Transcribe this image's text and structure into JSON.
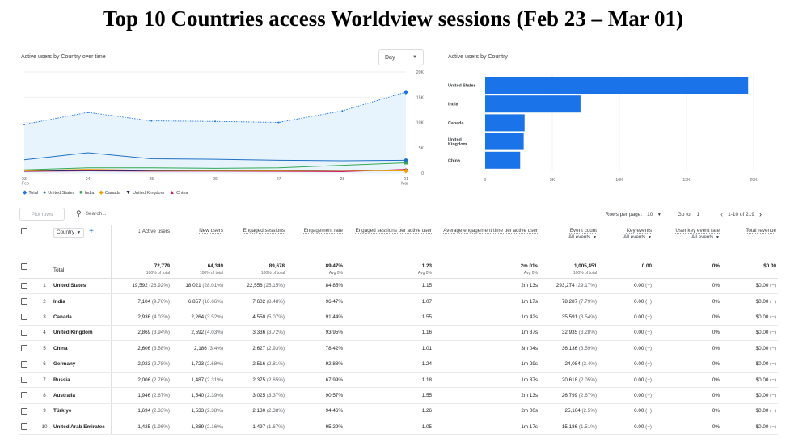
{
  "title": "Top 10 Countries access Worldview sessions (Feb 23 – Mar 01)",
  "line_panel": {
    "label": "Active users by Country over time",
    "granularity": "Day",
    "chevron_icon": "chevron-down-icon"
  },
  "bar_panel": {
    "label": "Active users by Country"
  },
  "colors": {
    "total": "#1a73e8",
    "united_states": "#1f6fc5",
    "india": "#33a853",
    "canada": "#f4a100",
    "united_kingdom": "#202a6e",
    "china": "#d81b60",
    "bar": "#1a73e8",
    "area": "#e8f4fd"
  },
  "chart_data": [
    {
      "type": "line",
      "title": "Active users by Country over time",
      "x": [
        "23\nFeb",
        "24",
        "25",
        "26",
        "27",
        "28",
        "01\nMar"
      ],
      "ylim": [
        0,
        20000
      ],
      "y_ticks": [
        "20K",
        "15K",
        "10K",
        "5K",
        "0"
      ],
      "grid": true,
      "legend_position": "bottom-left",
      "series": [
        {
          "name": "Total",
          "values": [
            9600,
            12000,
            10300,
            10200,
            10000,
            12300,
            16000
          ]
        },
        {
          "name": "United States",
          "values": [
            2600,
            4000,
            2800,
            2700,
            2500,
            2400,
            2500
          ]
        },
        {
          "name": "India",
          "values": [
            600,
            1000,
            1000,
            900,
            1000,
            1500,
            2000
          ]
        },
        {
          "name": "Canada",
          "values": [
            400,
            700,
            500,
            450,
            450,
            500,
            400
          ]
        },
        {
          "name": "United Kingdom",
          "values": [
            350,
            450,
            400,
            400,
            400,
            450,
            450
          ]
        },
        {
          "name": "China",
          "values": [
            300,
            400,
            350,
            350,
            300,
            250,
            700
          ]
        }
      ]
    },
    {
      "type": "bar",
      "orientation": "horizontal",
      "title": "Active users by Country",
      "categories": [
        "United States",
        "India",
        "Canada",
        "United Kingdom",
        "China"
      ],
      "values": [
        19592,
        7104,
        2936,
        2869,
        2606
      ],
      "xlim": [
        0,
        20000
      ],
      "x_ticks": [
        "0",
        "5K",
        "10K",
        "15K",
        "20K"
      ],
      "grid": true
    }
  ],
  "legend": [
    {
      "label": "Total",
      "icon": "diamond-icon",
      "key": "total"
    },
    {
      "label": "United States",
      "icon": "circle-icon",
      "key": "united_states"
    },
    {
      "label": "India",
      "icon": "square-icon",
      "key": "india"
    },
    {
      "label": "Canada",
      "icon": "diamond-icon",
      "key": "canada"
    },
    {
      "label": "United Kingdom",
      "icon": "triangle-down-icon",
      "key": "united_kingdom"
    },
    {
      "label": "China",
      "icon": "triangle-up-icon",
      "key": "china"
    }
  ],
  "toolbar": {
    "plot_rows": "Plot rows",
    "search_placeholder": "Search...",
    "search_icon": "search-icon",
    "rows_per_page_label": "Rows per page:",
    "rows_per_page": "10",
    "goto_label": "Go to:",
    "goto_value": "1",
    "range": "1-10 of 219"
  },
  "table": {
    "country_dimension": "Country",
    "columns": [
      {
        "label": "Active users",
        "sorted": true
      },
      {
        "label": "New users"
      },
      {
        "label": "Engaged sessions"
      },
      {
        "label": "Engagement rate"
      },
      {
        "label": "Engaged sessions per active user"
      },
      {
        "label": "Average engagement time per active user"
      },
      {
        "label": "Event count",
        "sub": "All events"
      },
      {
        "label": "Key events",
        "sub": "All events"
      },
      {
        "label": "User key event rate",
        "sub": "All events"
      },
      {
        "label": "Total revenue"
      }
    ],
    "total": {
      "label": "Total",
      "cells": [
        {
          "v": "72,779",
          "s": "100% of total"
        },
        {
          "v": "64,349",
          "s": "100% of total"
        },
        {
          "v": "89,678",
          "s": "100% of total"
        },
        {
          "v": "89.47%",
          "s": "Avg 0%"
        },
        {
          "v": "1.23",
          "s": "Avg 0%"
        },
        {
          "v": "2m 01s",
          "s": "Avg 0%"
        },
        {
          "v": "1,005,451",
          "s": "100% of total"
        },
        {
          "v": "0.00",
          "s": ""
        },
        {
          "v": "0%",
          "s": ""
        },
        {
          "v": "$0.00",
          "s": ""
        }
      ]
    },
    "rows": [
      {
        "idx": "1",
        "country": "United States",
        "cells": [
          [
            "19,592",
            "(26.92%)"
          ],
          [
            "18,021",
            "(28.01%)"
          ],
          [
            "22,558",
            "(25.15%)"
          ],
          [
            "84.85%",
            ""
          ],
          [
            "1.15",
            ""
          ],
          [
            "2m 13s",
            ""
          ],
          [
            "293,274",
            "(29.17%)"
          ],
          [
            "0.00",
            "(−)"
          ],
          [
            "0%",
            ""
          ],
          [
            "$0.00",
            "(−)"
          ]
        ]
      },
      {
        "idx": "2",
        "country": "India",
        "cells": [
          [
            "7,104",
            "(9.76%)"
          ],
          [
            "6,857",
            "(10.66%)"
          ],
          [
            "7,602",
            "(8.48%)"
          ],
          [
            "96.47%",
            ""
          ],
          [
            "1.07",
            ""
          ],
          [
            "1m 17s",
            ""
          ],
          [
            "78,287",
            "(7.79%)"
          ],
          [
            "0.00",
            "(−)"
          ],
          [
            "0%",
            ""
          ],
          [
            "$0.00",
            "(−)"
          ]
        ]
      },
      {
        "idx": "3",
        "country": "Canada",
        "cells": [
          [
            "2,936",
            "(4.03%)"
          ],
          [
            "2,264",
            "(3.52%)"
          ],
          [
            "4,550",
            "(5.07%)"
          ],
          [
            "91.44%",
            ""
          ],
          [
            "1.55",
            ""
          ],
          [
            "1m 42s",
            ""
          ],
          [
            "35,591",
            "(3.54%)"
          ],
          [
            "0.00",
            "(−)"
          ],
          [
            "0%",
            ""
          ],
          [
            "$0.00",
            "(−)"
          ]
        ]
      },
      {
        "idx": "4",
        "country": "United Kingdom",
        "cells": [
          [
            "2,869",
            "(3.94%)"
          ],
          [
            "2,592",
            "(4.03%)"
          ],
          [
            "3,336",
            "(3.72%)"
          ],
          [
            "93.95%",
            ""
          ],
          [
            "1.16",
            ""
          ],
          [
            "1m 37s",
            ""
          ],
          [
            "32,935",
            "(3.28%)"
          ],
          [
            "0.00",
            "(−)"
          ],
          [
            "0%",
            ""
          ],
          [
            "$0.00",
            "(−)"
          ]
        ]
      },
      {
        "idx": "5",
        "country": "China",
        "cells": [
          [
            "2,606",
            "(3.58%)"
          ],
          [
            "2,186",
            "(3.4%)"
          ],
          [
            "2,627",
            "(2.93%)"
          ],
          [
            "78.42%",
            ""
          ],
          [
            "1.01",
            ""
          ],
          [
            "3m 04s",
            ""
          ],
          [
            "36,136",
            "(3.59%)"
          ],
          [
            "0.00",
            "(−)"
          ],
          [
            "0%",
            ""
          ],
          [
            "$0.00",
            "(−)"
          ]
        ]
      },
      {
        "idx": "6",
        "country": "Germany",
        "cells": [
          [
            "2,023",
            "(2.78%)"
          ],
          [
            "1,723",
            "(2.68%)"
          ],
          [
            "2,516",
            "(2.81%)"
          ],
          [
            "92.88%",
            ""
          ],
          [
            "1.24",
            ""
          ],
          [
            "1m 29s",
            ""
          ],
          [
            "24,084",
            "(2.4%)"
          ],
          [
            "0.00",
            "(−)"
          ],
          [
            "0%",
            ""
          ],
          [
            "$0.00",
            "(−)"
          ]
        ]
      },
      {
        "idx": "7",
        "country": "Russia",
        "cells": [
          [
            "2,006",
            "(2.76%)"
          ],
          [
            "1,487",
            "(2.31%)"
          ],
          [
            "2,375",
            "(2.65%)"
          ],
          [
            "67.99%",
            ""
          ],
          [
            "1.18",
            ""
          ],
          [
            "1m 37s",
            ""
          ],
          [
            "20,618",
            "(2.05%)"
          ],
          [
            "0.00",
            "(−)"
          ],
          [
            "0%",
            ""
          ],
          [
            "$0.00",
            "(−)"
          ]
        ]
      },
      {
        "idx": "8",
        "country": "Australia",
        "cells": [
          [
            "1,946",
            "(2.67%)"
          ],
          [
            "1,540",
            "(2.39%)"
          ],
          [
            "3,025",
            "(3.37%)"
          ],
          [
            "90.57%",
            ""
          ],
          [
            "1.55",
            ""
          ],
          [
            "2m 13s",
            ""
          ],
          [
            "26,799",
            "(2.67%)"
          ],
          [
            "0.00",
            "(−)"
          ],
          [
            "0%",
            ""
          ],
          [
            "$0.00",
            "(−)"
          ]
        ]
      },
      {
        "idx": "9",
        "country": "Türkiye",
        "cells": [
          [
            "1,694",
            "(2.33%)"
          ],
          [
            "1,533",
            "(2.38%)"
          ],
          [
            "2,130",
            "(2.38%)"
          ],
          [
            "94.46%",
            ""
          ],
          [
            "1.26",
            ""
          ],
          [
            "2m 00s",
            ""
          ],
          [
            "25,104",
            "(2.5%)"
          ],
          [
            "0.00",
            "(−)"
          ],
          [
            "0%",
            ""
          ],
          [
            "$0.00",
            "(−)"
          ]
        ]
      },
      {
        "idx": "10",
        "country": "United Arab Emirates",
        "cells": [
          [
            "1,425",
            "(1.96%)"
          ],
          [
            "1,389",
            "(2.16%)"
          ],
          [
            "1,497",
            "(1.67%)"
          ],
          [
            "95.29%",
            ""
          ],
          [
            "1.05",
            ""
          ],
          [
            "1m 17s",
            ""
          ],
          [
            "15,186",
            "(1.51%)"
          ],
          [
            "0.00",
            "(−)"
          ],
          [
            "0%",
            ""
          ],
          [
            "$0.00",
            "(−)"
          ]
        ]
      }
    ]
  }
}
